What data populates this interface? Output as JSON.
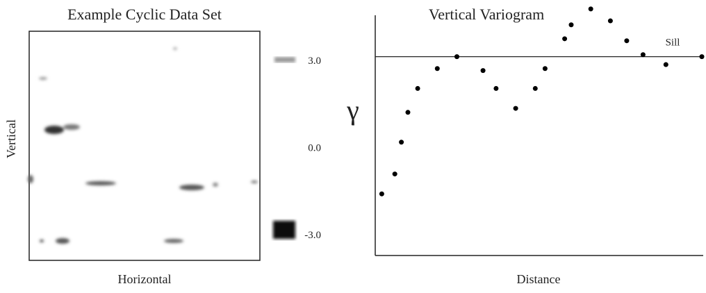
{
  "chart_data": [
    {
      "type": "heatmap",
      "title": "Example Cyclic Data Set",
      "x_label": "Horizontal",
      "y_label": "Vertical",
      "colorbar_ticks": [
        {
          "value": 3,
          "label": "3.0"
        },
        {
          "value": 0,
          "label": "0.0"
        },
        {
          "value": -3,
          "label": "-3.0"
        }
      ],
      "colorbar_lim": [
        -3.5,
        3.5
      ]
    },
    {
      "type": "scatter",
      "title": "Vertical Variogram",
      "x_label": "Distance",
      "y_label": "γ",
      "x": [
        0.02,
        0.06,
        0.08,
        0.1,
        0.13,
        0.19,
        0.25,
        0.33,
        0.37,
        0.43,
        0.49,
        0.52,
        0.58,
        0.6,
        0.66,
        0.72,
        0.77,
        0.82,
        0.89,
        1.0
      ],
      "values": [
        0.31,
        0.41,
        0.57,
        0.72,
        0.84,
        0.94,
        1.0,
        0.93,
        0.84,
        0.74,
        0.84,
        0.94,
        1.09,
        1.16,
        1.24,
        1.18,
        1.08,
        1.01,
        0.96,
        1.0
      ],
      "xlim": [
        0,
        1
      ],
      "ylim": [
        0,
        1.25
      ],
      "sill": 1,
      "sill_label": "Sill",
      "color": "#000000"
    }
  ]
}
